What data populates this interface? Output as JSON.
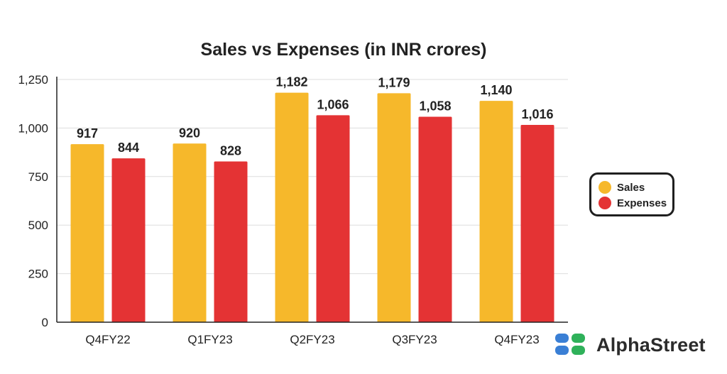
{
  "chart_data": {
    "type": "bar",
    "title": "Sales vs Expenses (in INR crores)",
    "xlabel": "",
    "ylabel": "",
    "categories": [
      "Q4FY22",
      "Q1FY23",
      "Q2FY23",
      "Q3FY23",
      "Q4FY23"
    ],
    "series": [
      {
        "name": "Sales",
        "values": [
          917,
          920,
          1182,
          1179,
          1140
        ],
        "labels": [
          "917",
          "920",
          "1,182",
          "1,179",
          "1,140"
        ],
        "color": "#f6b82b"
      },
      {
        "name": "Expenses",
        "values": [
          844,
          828,
          1066,
          1058,
          1016
        ],
        "labels": [
          "844",
          "828",
          "1,066",
          "1,058",
          "1,016"
        ],
        "color": "#e43334"
      }
    ],
    "ylim": [
      0,
      1250
    ],
    "yticks": [
      0,
      250,
      500,
      750,
      1000,
      1250
    ],
    "ytick_labels": [
      "0",
      "250",
      "500",
      "750",
      "1,000",
      "1,250"
    ],
    "grid": true,
    "legend_position": "right"
  },
  "brand": {
    "name": "AlphaStreet",
    "icon": "alphastreet-logo-icon",
    "colors": [
      "#3a7fd5",
      "#2fb15a"
    ]
  }
}
